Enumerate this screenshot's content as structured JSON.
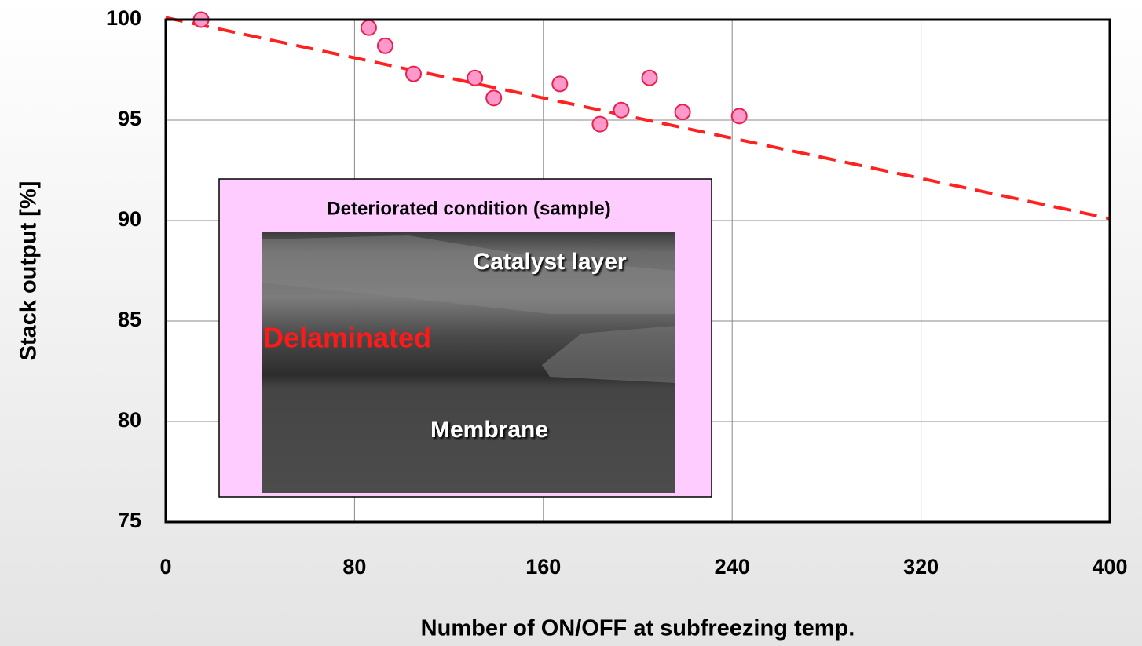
{
  "chart_data": {
    "type": "scatter",
    "xlabel": "Number of ON/OFF at subfreezing temp.",
    "ylabel": "Stack output [%]",
    "x": [
      15,
      86,
      93,
      105,
      131,
      139,
      167,
      184,
      193,
      205,
      219,
      243
    ],
    "values": [
      100,
      99.6,
      98.7,
      97.3,
      97.1,
      96.1,
      96.8,
      94.8,
      95.5,
      97.1,
      95.4,
      95.2
    ],
    "color": "#ff99cc",
    "edge_color": "#e8204a",
    "trendline": {
      "x": [
        0,
        400
      ],
      "values": [
        100.1,
        90.1
      ],
      "color": "#ff2020",
      "dashed": true
    },
    "xlim": [
      0,
      400
    ],
    "xticks": [
      0,
      80,
      160,
      240,
      320,
      400
    ],
    "ylim": [
      75,
      100
    ],
    "yticks": [
      75,
      80,
      85,
      90,
      95,
      100
    ],
    "grid": true,
    "inset": {
      "title": "Deteriorated condition (sample)",
      "labels": [
        "Catalyst layer",
        "Delaminated",
        "Membrane"
      ]
    }
  }
}
